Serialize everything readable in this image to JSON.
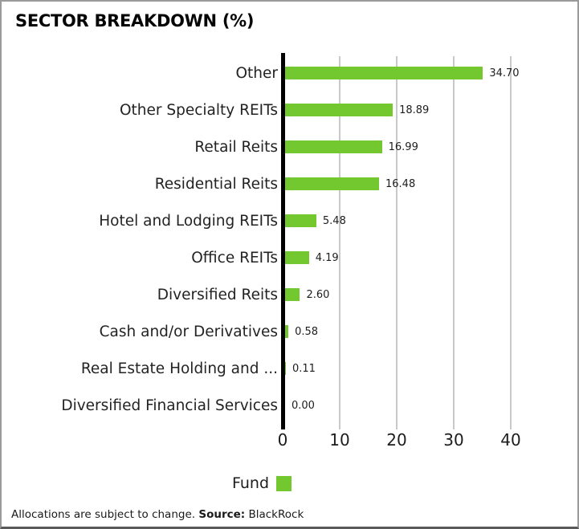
{
  "header": {
    "title": "SECTOR BREAKDOWN (%)"
  },
  "chart_data": {
    "type": "bar",
    "orientation": "horizontal",
    "title": "SECTOR BREAKDOWN (%)",
    "categories": [
      "Other",
      "Other Specialty REITs",
      "Retail Reits",
      "Residential Reits",
      "Hotel and Lodging REITs",
      "Office REITs",
      "Diversified Reits",
      "Cash and/or Derivatives",
      "Real Estate Holding and ...",
      "Diversified Financial Services"
    ],
    "series": [
      {
        "name": "Fund",
        "values": [
          34.7,
          18.89,
          16.99,
          16.48,
          5.48,
          4.19,
          2.6,
          0.58,
          0.11,
          0.0
        ]
      }
    ],
    "value_labels": [
      "34.70",
      "18.89",
      "16.99",
      "16.48",
      "5.48",
      "4.19",
      "2.60",
      "0.58",
      "0.11",
      "0.00"
    ],
    "x_ticks": [
      0,
      10,
      20,
      30,
      40
    ],
    "x_tick_labels": [
      "0",
      "10",
      "20",
      "30",
      "40"
    ],
    "xlim": [
      0,
      42
    ],
    "grid": true,
    "legend": {
      "position": "bottom",
      "entries": [
        {
          "label": "Fund",
          "color": "#73c82f"
        }
      ]
    },
    "colors": {
      "bar": "#73c82f",
      "gridline": "#c9c9c9",
      "axis_line": "#000000"
    }
  },
  "footnote": {
    "prefix": "Allocations are subject to change. ",
    "source_label": "Source:",
    "source_value": " BlackRock"
  }
}
